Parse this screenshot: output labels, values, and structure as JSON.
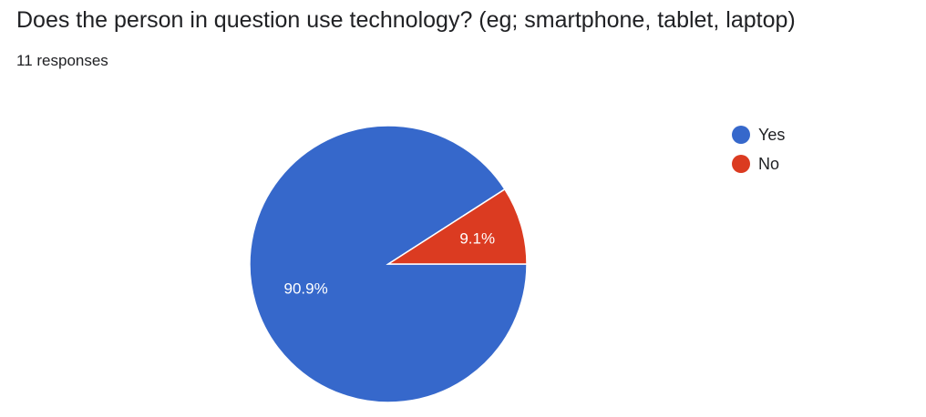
{
  "question": {
    "title": "Does the person in question use technology? (eg; smartphone, tablet, laptop)",
    "responses_label": "11 responses"
  },
  "chart_data": {
    "type": "pie",
    "title": "Does the person in question use technology? (eg; smartphone, tablet, laptop)",
    "categories": [
      "Yes",
      "No"
    ],
    "values": [
      10,
      1
    ],
    "percent_labels": [
      "90.9%",
      "9.1%"
    ],
    "colors": [
      "#3668CB",
      "#DB3B21"
    ],
    "legend_position": "right"
  }
}
